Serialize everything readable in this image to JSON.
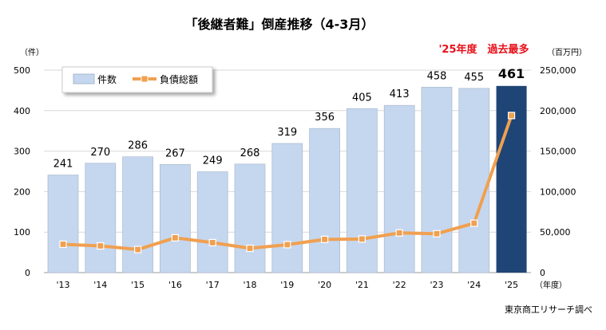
{
  "chart_data": {
    "type": "bar+line",
    "title": "「後継者難」倒産推移（4-3月）",
    "annotation": "'25年度　過去最多",
    "source": "東京商工リサーチ調べ",
    "left_unit": "（件）",
    "right_unit": "（百万円）",
    "x_unit": "（年度）",
    "categories": [
      "'13",
      "'14",
      "'15",
      "'16",
      "'17",
      "'18",
      "'19",
      "'20",
      "'21",
      "'22",
      "'23",
      "'24",
      "'25"
    ],
    "left_axis": {
      "range": [
        0,
        500
      ],
      "ticks": [
        "0",
        "100",
        "200",
        "300",
        "400",
        "500"
      ]
    },
    "right_axis": {
      "range": [
        0,
        250000
      ],
      "ticks": [
        "0",
        "50,000",
        "100,000",
        "150,000",
        "200,000",
        "250,000"
      ]
    },
    "grid": true,
    "legend_placement": "top-left",
    "series": [
      {
        "name": "件数",
        "type": "bar",
        "axis": "left",
        "values": [
          241,
          270,
          286,
          267,
          249,
          268,
          319,
          356,
          405,
          413,
          458,
          455,
          461
        ],
        "color": "#c5d7ef",
        "highlight_color": "#1f4576"
      },
      {
        "name": "負債総額",
        "type": "line",
        "axis": "right",
        "values": [
          35000,
          33000,
          28500,
          43000,
          37000,
          30000,
          34500,
          41000,
          41500,
          49000,
          48000,
          61000,
          194000
        ],
        "color": "#f0a050"
      }
    ],
    "annotation_color": "#e8101a"
  }
}
